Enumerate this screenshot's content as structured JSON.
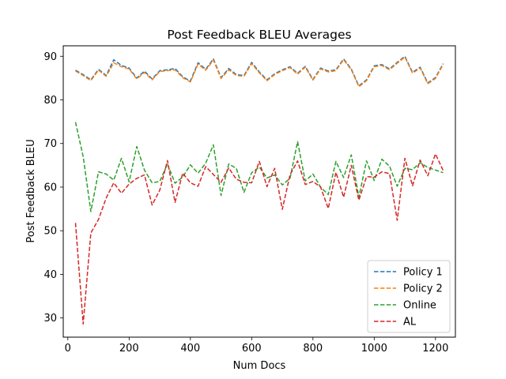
{
  "chart_data": {
    "type": "line",
    "title": "Post Feedback BLEU Averages",
    "xlabel": "Num Docs",
    "ylabel": "Post Feedback BLEU",
    "xlim": [
      -15,
      1265
    ],
    "ylim": [
      25.6,
      92.4
    ],
    "xticks": [
      0,
      200,
      400,
      600,
      800,
      1000,
      1200
    ],
    "yticks": [
      30,
      40,
      50,
      60,
      70,
      80,
      90
    ],
    "grid": false,
    "legend_position": "lower-right",
    "x": [
      25,
      50,
      75,
      100,
      125,
      150,
      175,
      200,
      225,
      250,
      275,
      300,
      325,
      350,
      375,
      400,
      425,
      450,
      475,
      500,
      525,
      550,
      575,
      600,
      625,
      650,
      675,
      700,
      725,
      750,
      775,
      800,
      825,
      850,
      875,
      900,
      925,
      950,
      975,
      1000,
      1025,
      1050,
      1075,
      1100,
      1125,
      1150,
      1175,
      1200,
      1225
    ],
    "series": [
      {
        "name": "Policy 1",
        "color": "#1f77b4",
        "values": [
          86.8,
          85.8,
          84.6,
          87.0,
          85.6,
          89.2,
          87.9,
          87.3,
          85.0,
          86.6,
          84.8,
          86.7,
          86.9,
          87.2,
          85.3,
          84.3,
          88.5,
          87.0,
          89.4,
          85.1,
          87.2,
          85.8,
          85.6,
          88.6,
          86.4,
          84.6,
          86.0,
          86.9,
          87.6,
          86.1,
          87.7,
          84.7,
          87.3,
          86.6,
          86.9,
          89.4,
          87.1,
          83.2,
          84.6,
          87.8,
          88.1,
          87.1,
          88.6,
          90.0,
          86.3,
          87.5,
          83.9,
          85.1,
          88.3
        ]
      },
      {
        "name": "Policy 2",
        "color": "#ff7f0e",
        "values": [
          86.6,
          85.6,
          84.4,
          86.8,
          85.4,
          88.5,
          87.6,
          87.1,
          84.8,
          86.3,
          84.6,
          86.5,
          86.7,
          86.9,
          85.1,
          84.1,
          88.2,
          86.8,
          89.1,
          84.9,
          86.9,
          85.6,
          85.4,
          88.3,
          86.2,
          84.4,
          85.8,
          86.7,
          87.4,
          85.9,
          87.5,
          84.5,
          87.1,
          86.4,
          86.7,
          89.2,
          86.9,
          83.0,
          84.4,
          87.6,
          87.9,
          86.9,
          88.4,
          89.8,
          86.1,
          87.3,
          83.7,
          84.9,
          88.1
        ]
      },
      {
        "name": "Online",
        "color": "#2ca02c",
        "values": [
          74.9,
          67.0,
          54.4,
          63.5,
          63.0,
          61.6,
          66.6,
          61.2,
          69.3,
          63.9,
          61.0,
          61.3,
          65.3,
          60.9,
          62.3,
          65.1,
          63.2,
          65.5,
          69.7,
          58.1,
          65.3,
          64.3,
          58.8,
          63.3,
          64.6,
          62.1,
          62.8,
          60.5,
          62.0,
          70.4,
          61.4,
          63.0,
          60.0,
          58.3,
          65.9,
          62.2,
          67.4,
          57.7,
          66.0,
          61.5,
          66.4,
          64.8,
          60.2,
          64.3,
          64.0,
          65.6,
          64.5,
          63.9,
          63.3
        ]
      },
      {
        "name": "AL",
        "color": "#d62728",
        "values": [
          51.8,
          28.6,
          49.5,
          52.6,
          57.5,
          61.0,
          58.6,
          60.7,
          62.0,
          62.8,
          55.9,
          59.3,
          66.1,
          56.5,
          63.2,
          61.0,
          60.2,
          64.7,
          62.9,
          61.1,
          64.4,
          61.8,
          61.1,
          61.0,
          65.9,
          60.1,
          64.3,
          54.9,
          62.8,
          66.0,
          60.6,
          61.3,
          60.0,
          55.1,
          63.4,
          57.7,
          65.0,
          57.0,
          62.4,
          62.3,
          63.5,
          63.1,
          52.4,
          66.6,
          60.3,
          66.2,
          62.6,
          67.6,
          63.8
        ]
      }
    ]
  }
}
